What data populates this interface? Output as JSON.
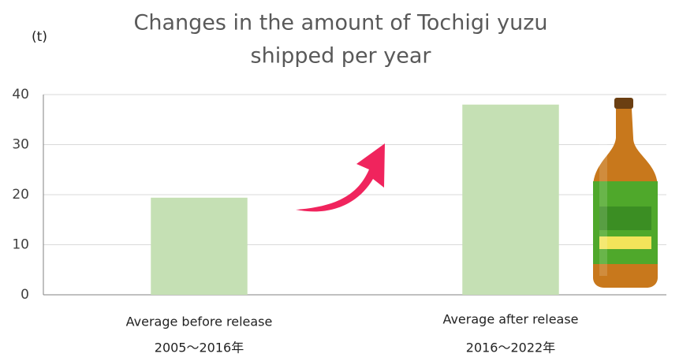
{
  "chart_data": {
    "type": "bar",
    "title_lines": [
      "Changes in the amount of Tochigi yuzu",
      "shipped per year"
    ],
    "y_unit": "(t)",
    "categories": [
      "Average before release",
      "Average after release"
    ],
    "category_sublabels": [
      "2005～2016年",
      "2016～2022年"
    ],
    "values": [
      19.4,
      38
    ],
    "color": "#c5e0b4",
    "ylim": [
      0,
      40
    ],
    "yticks": [
      0,
      10,
      20,
      30,
      40
    ],
    "grid": true
  }
}
